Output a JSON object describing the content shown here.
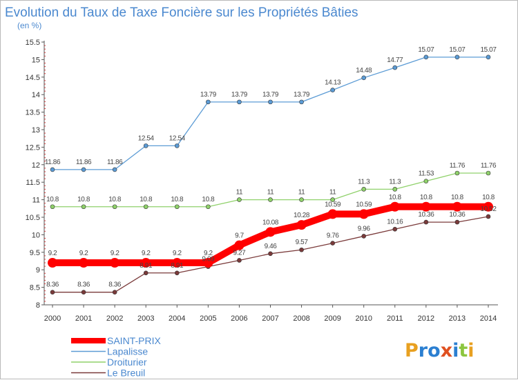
{
  "chart_data": {
    "type": "line",
    "title": "Evolution du Taux de Taxe Foncière sur les Propriétés Bâties",
    "subtitle": "(en %)",
    "x": [
      "2000",
      "2001",
      "2002",
      "2003",
      "2004",
      "2005",
      "2006",
      "2007",
      "2008",
      "2009",
      "2010",
      "2011",
      "2012",
      "2013",
      "2014"
    ],
    "ylim": [
      8,
      15.5
    ],
    "yticks": [
      "8",
      "8.5",
      "9",
      "9.5",
      "10",
      "10.5",
      "11",
      "11.5",
      "12",
      "12.5",
      "13",
      "13.5",
      "14",
      "14.5",
      "15",
      "15.5"
    ],
    "grid": false,
    "legend_position": "bottom-left",
    "series": [
      {
        "name": "Lapalisse",
        "color": "#5b9bd5",
        "values": [
          11.86,
          11.86,
          11.86,
          12.54,
          12.54,
          13.79,
          13.79,
          13.79,
          13.79,
          14.13,
          14.48,
          14.77,
          15.07,
          15.07,
          15.07
        ],
        "labels": [
          "11.86",
          "11.86",
          "11.86",
          "12.54",
          "12.54",
          "13.79",
          "13.79",
          "13.79",
          "13.79",
          "14.13",
          "14.48",
          "14.77",
          "15.07",
          "15.07",
          "15.07"
        ]
      },
      {
        "name": "Droiturier",
        "color": "#8fd16a",
        "values": [
          10.8,
          10.8,
          10.8,
          10.8,
          10.8,
          10.8,
          11,
          11,
          11,
          11,
          11.3,
          11.3,
          11.53,
          11.76,
          11.76
        ],
        "labels": [
          "10.8",
          "10.8",
          "10.8",
          "10.8",
          "10.8",
          "10.8",
          "11",
          "11",
          "11",
          "11",
          "11.3",
          "11.3",
          "11.53",
          "11.76",
          "11.76"
        ]
      },
      {
        "name": "Le Breuil",
        "color": "#7a3a3a",
        "values": [
          8.36,
          8.36,
          8.36,
          8.91,
          8.91,
          9.09,
          9.27,
          9.46,
          9.57,
          9.76,
          9.96,
          10.16,
          10.36,
          10.36,
          10.52
        ],
        "labels": [
          "8.36",
          "8.36",
          "8.36",
          "8.91",
          "8.91",
          "9.09",
          "9.27",
          "9.46",
          "9.57",
          "9.76",
          "9.96",
          "10.16",
          "10.36",
          "10.36",
          "10.52"
        ]
      },
      {
        "name": "SAINT-PRIX",
        "color": "#ff0000",
        "values": [
          9.2,
          9.2,
          9.2,
          9.2,
          9.2,
          9.2,
          9.7,
          10.08,
          10.28,
          10.59,
          10.59,
          10.8,
          10.8,
          10.8,
          10.8
        ],
        "labels": [
          "9.2",
          "9.2",
          "9.2",
          "9.2",
          "9.2",
          "9.2",
          "9.7",
          "10.08",
          "10.28",
          "10.59",
          "10.59",
          "10.8",
          "10.8",
          "10.8",
          "10.8"
        ]
      }
    ]
  },
  "legend": {
    "items": [
      {
        "name": "SAINT-PRIX",
        "color": "#ff0000"
      },
      {
        "name": "Lapalisse",
        "color": "#5b9bd5"
      },
      {
        "name": "Droiturier",
        "color": "#8fd16a"
      },
      {
        "name": "Le Breuil",
        "color": "#7a3a3a"
      }
    ]
  },
  "brand": {
    "text": "Proxiti",
    "colors": [
      "#e8a020",
      "#2b7fd1",
      "#2b7fd1",
      "#e05020",
      "#2b7fd1",
      "#8cc63f"
    ]
  }
}
